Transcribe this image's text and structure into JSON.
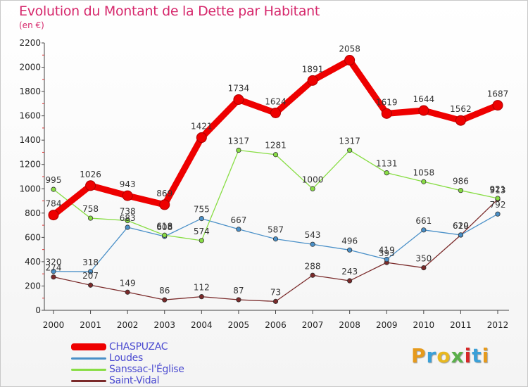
{
  "header": {
    "title": "Evolution du Montant de la Dette par Habitant",
    "subtitle": "(en €)"
  },
  "logo": {
    "text": "Proxiti",
    "colors": [
      "#e69a1c",
      "#3aa0d8",
      "#e8b820",
      "#5ab04a",
      "#d62828",
      "#3aa0d8",
      "#e69a1c"
    ]
  },
  "chart_data": {
    "type": "line",
    "title": "Evolution du Montant de la Dette par Habitant",
    "subtitle": "(en €)",
    "xlabel": "",
    "ylabel": "",
    "x": [
      "2000",
      "2001",
      "2002",
      "2003",
      "2004",
      "2005",
      "2006",
      "2007",
      "2008",
      "2009",
      "2010",
      "2011",
      "2012"
    ],
    "ylim": [
      0,
      2200
    ],
    "yticks": [
      0,
      200,
      400,
      600,
      800,
      1000,
      1200,
      1400,
      1600,
      1800,
      2000,
      2200
    ],
    "grid": false,
    "legend_position": "bottom-left",
    "series": [
      {
        "name": "CHASPUZAC",
        "color": "#ee0000",
        "values": [
          784,
          1026,
          943,
          869,
          1421,
          1734,
          1624,
          1891,
          2058,
          1619,
          1644,
          1562,
          1687
        ],
        "labels": [
          "784",
          "1026",
          "943",
          "869",
          "1421",
          "1734",
          "1624",
          "1891",
          "2058",
          "1619",
          "1644",
          "1562",
          "1687"
        ]
      },
      {
        "name": "Loudes",
        "color": "#4a90c8",
        "values": [
          320,
          318,
          683,
          608,
          755,
          667,
          587,
          543,
          496,
          419,
          661,
          620,
          792
        ],
        "labels": [
          "320",
          "318",
          "683",
          "608",
          "755",
          "667",
          "587",
          "543",
          "496",
          "419",
          "661",
          "620",
          "792"
        ]
      },
      {
        "name": "Sanssac-l'Église",
        "color": "#88dd44",
        "values": [
          995,
          758,
          738,
          618,
          574,
          1317,
          1281,
          1000,
          1317,
          1131,
          1058,
          986,
          921
        ],
        "labels": [
          "995",
          "758",
          "738",
          "618",
          "574",
          "1317",
          "1281",
          "1000",
          "1317",
          "1131",
          "1058",
          "986",
          "921"
        ]
      },
      {
        "name": "Saint-Vidal",
        "color": "#7a2a2a",
        "values": [
          274,
          207,
          149,
          86,
          112,
          87,
          73,
          288,
          243,
          393,
          350,
          619,
          913
        ],
        "labels": [
          "274",
          "207",
          "149",
          "86",
          "112",
          "87",
          "73",
          "288",
          "243",
          "393",
          "350",
          "619",
          "913"
        ]
      }
    ]
  }
}
